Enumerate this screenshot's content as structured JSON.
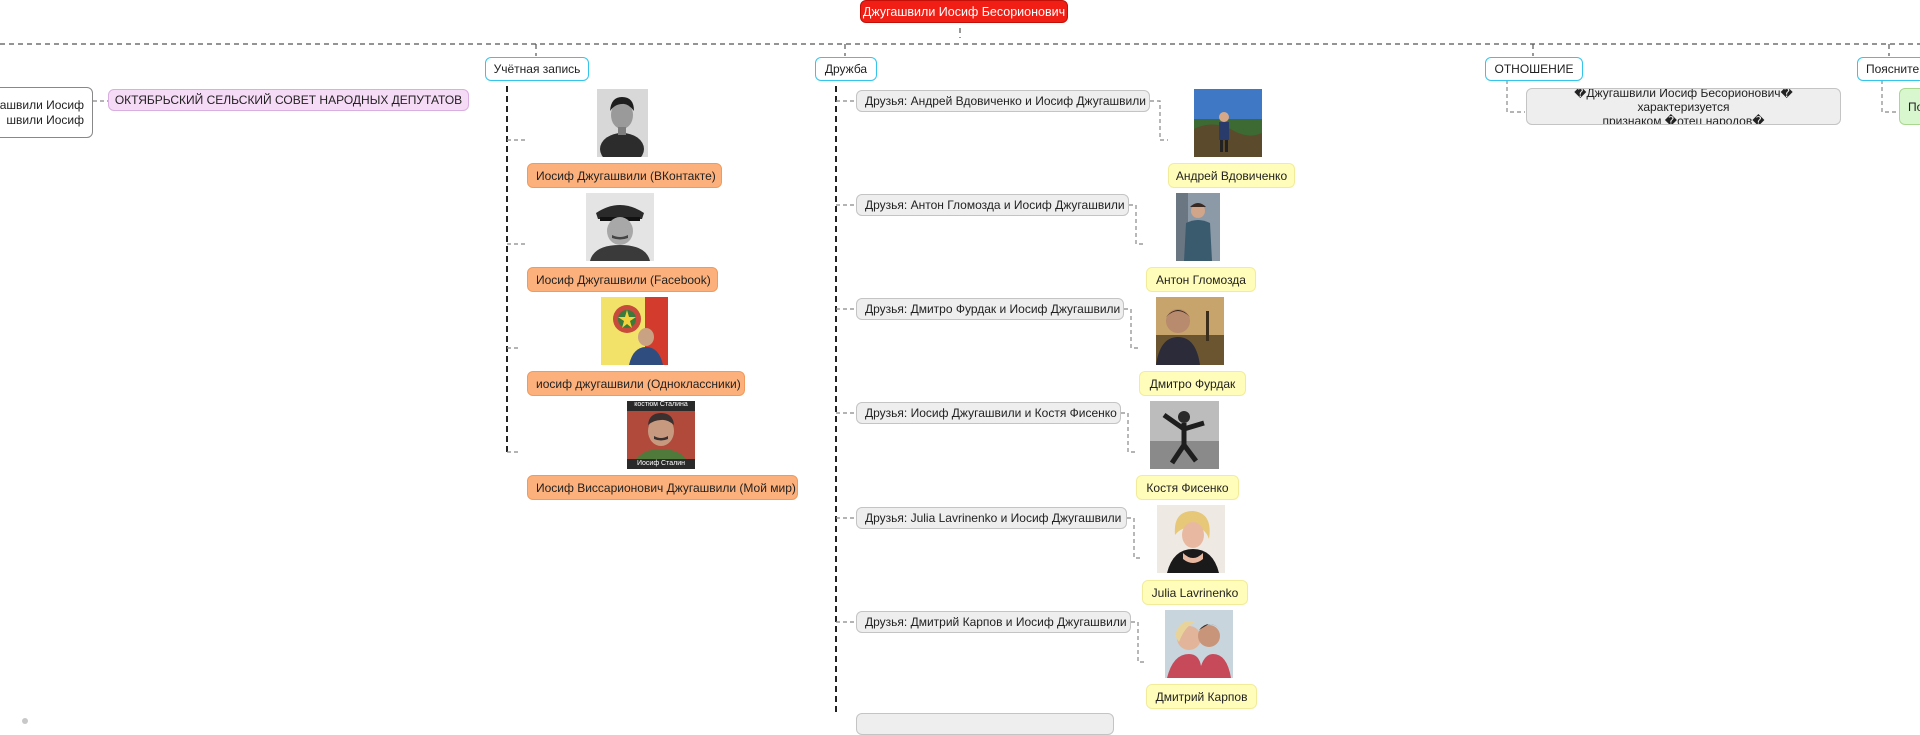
{
  "colors": {
    "root_fill": "#f01e14",
    "category_border": "#33c5ec",
    "account_fill": "#fcb17c",
    "friend_fill": "#fffdb9",
    "relation_fill": "#eeeeee",
    "council_fill": "#f6dbf6",
    "note_fill": "#d9f7cf"
  },
  "root": {
    "label": "Джугашвили Иосиф Бесорионович"
  },
  "left_branch": {
    "partial_node_line1": "гашвили Иосиф",
    "partial_node_line2": "швили Иосиф",
    "council": "ОКТЯБРЬСКИЙ СЕЛЬСКИЙ СОВЕТ НАРОДНЫХ ДЕПУТАТОВ"
  },
  "categories": {
    "account": "Учётная запись",
    "friendship": "Дружба",
    "relation": "ОТНОШЕНИЕ",
    "explanation_partial": "Поясните"
  },
  "accounts": [
    {
      "label": "Иосиф Джугашвили (ВКонтакте)",
      "photo_icon": "portrait-photo-young-man"
    },
    {
      "label": "Иосиф Джугашвили (Facebook)",
      "photo_icon": "portrait-photo-marshal"
    },
    {
      "label": "иосиф джугашвили (Одноклассники)",
      "photo_icon": "portrait-photo-emblem"
    },
    {
      "label": "Иосиф Виссарионович Джугашвили (Мой мир)",
      "photo_icon": "portrait-photo-poster"
    }
  ],
  "poster_caption_top": "костюм Сталина",
  "poster_caption_bottom": "Иосиф Сталин",
  "friendships": [
    {
      "relation": "Друзья: Андрей Вдовиченко и Иосиф Джугашвили",
      "friend": "Андрей Вдовиченко",
      "photo_icon": "photo-person-outdoors"
    },
    {
      "relation": "Друзья: Антон Гломозда и Иосиф Джугашвили",
      "friend": "Антон Гломозда",
      "photo_icon": "photo-person-street"
    },
    {
      "relation": "Друзья: Дмитро Фурдак и Иосиф Джугашвили",
      "friend": "Дмитро Фурдак",
      "photo_icon": "photo-person-evening"
    },
    {
      "relation": "Друзья: Иосиф Джугашвили и Костя Фисенко",
      "friend": "Костя Фисенко",
      "photo_icon": "photo-person-bw"
    },
    {
      "relation": "Друзья: Julia Lavrinenko и Иосиф Джугашвили",
      "friend": "Julia Lavrinenko",
      "photo_icon": "photo-person-portrait"
    },
    {
      "relation": "Друзья: Дмитрий Карпов и Иосиф Джугашвили",
      "friend": "Дмитрий Карпов",
      "photo_icon": "photo-couple"
    }
  ],
  "relation_text_line1": "�Джугашвили Иосиф Бесорионович� характеризуется",
  "relation_text_line2": "признаком �отец народов�",
  "explanation_note_partial": "По"
}
